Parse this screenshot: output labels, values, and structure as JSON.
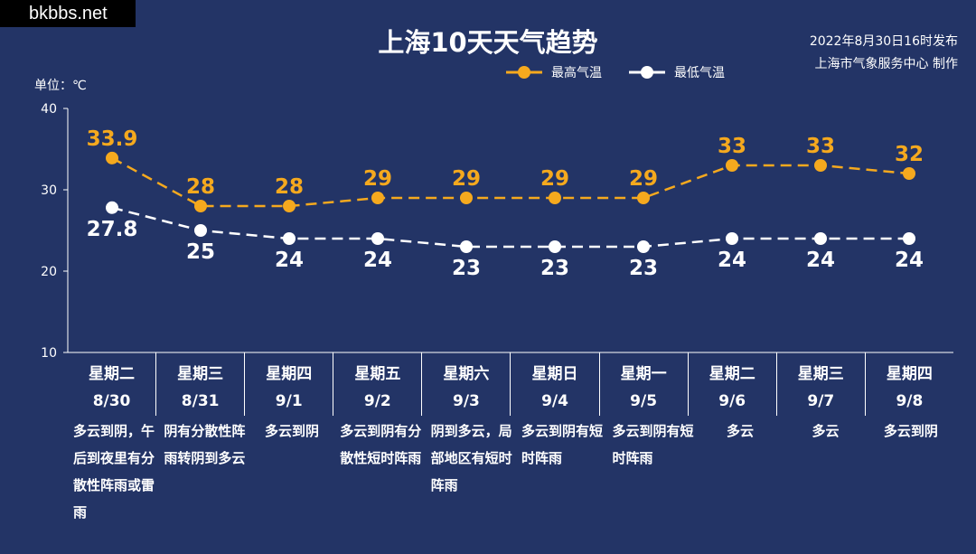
{
  "watermark": "bkbbs.net",
  "publish": {
    "line1": "2022年8月30日16时发布",
    "line2": "上海市气象服务中心 制作"
  },
  "chart_data": {
    "type": "line",
    "title": "上海10天天气趋势",
    "unit_label": "单位：℃",
    "ylim": [
      10,
      40
    ],
    "yticks": [
      "10",
      "20",
      "30",
      "40"
    ],
    "legend_position": "top-right",
    "categories": [
      {
        "weekday": "星期二",
        "date": "8/30",
        "desc": "多云到阴，午后到夜里有分散性阵雨或雷雨"
      },
      {
        "weekday": "星期三",
        "date": "8/31",
        "desc": "阴有分散性阵雨转阴到多云"
      },
      {
        "weekday": "星期四",
        "date": "9/1",
        "desc": "多云到阴"
      },
      {
        "weekday": "星期五",
        "date": "9/2",
        "desc": "多云到阴有分散性短时阵雨"
      },
      {
        "weekday": "星期六",
        "date": "9/3",
        "desc": "阴到多云，局部地区有短时阵雨"
      },
      {
        "weekday": "星期日",
        "date": "9/4",
        "desc": "多云到阴有短时阵雨"
      },
      {
        "weekday": "星期一",
        "date": "9/5",
        "desc": "多云到阴有短时阵雨"
      },
      {
        "weekday": "星期二",
        "date": "9/6",
        "desc": "多云"
      },
      {
        "weekday": "星期三",
        "date": "9/7",
        "desc": "多云"
      },
      {
        "weekday": "星期四",
        "date": "9/8",
        "desc": "多云到阴"
      }
    ],
    "series": [
      {
        "name": "最高气温",
        "color": "#f5a91e",
        "values": [
          33.9,
          28,
          28,
          29,
          29,
          29,
          29,
          33,
          33,
          32
        ],
        "labels": [
          "33.9",
          "28",
          "28",
          "29",
          "29",
          "29",
          "29",
          "33",
          "33",
          "32"
        ]
      },
      {
        "name": "最低气温",
        "color": "#ffffff",
        "values": [
          27.8,
          25,
          24,
          24,
          23,
          23,
          23,
          24,
          24,
          24
        ],
        "labels": [
          "27.8",
          "25",
          "24",
          "24",
          "23",
          "23",
          "23",
          "24",
          "24",
          "24"
        ]
      }
    ]
  }
}
